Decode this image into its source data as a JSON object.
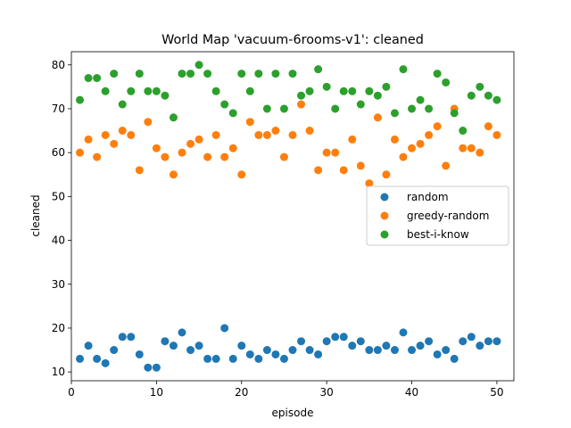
{
  "chart_data": {
    "type": "scatter",
    "title": "World Map 'vacuum-6rooms-v1': cleaned",
    "xlabel": "episode",
    "ylabel": "cleaned",
    "xlim": [
      0,
      52
    ],
    "ylim": [
      8,
      83
    ],
    "xticks": [
      0,
      10,
      20,
      30,
      40,
      50
    ],
    "yticks": [
      10,
      20,
      30,
      40,
      50,
      60,
      70,
      80
    ],
    "grid": false,
    "legend_position": "center-right",
    "x": [
      1,
      2,
      3,
      4,
      5,
      6,
      7,
      8,
      9,
      10,
      11,
      12,
      13,
      14,
      15,
      16,
      17,
      18,
      19,
      20,
      21,
      22,
      23,
      24,
      25,
      26,
      27,
      28,
      29,
      30,
      31,
      32,
      33,
      34,
      35,
      36,
      37,
      38,
      39,
      40,
      41,
      42,
      43,
      44,
      45,
      46,
      47,
      48,
      49,
      50
    ],
    "series": [
      {
        "name": "random",
        "color": "#1f77b4",
        "values": [
          13,
          16,
          13,
          12,
          15,
          18,
          18,
          14,
          11,
          11,
          17,
          16,
          19,
          15,
          16,
          13,
          13,
          20,
          13,
          16,
          14,
          13,
          15,
          14,
          13,
          15,
          17,
          15,
          14,
          17,
          18,
          18,
          16,
          17,
          15,
          15,
          16,
          15,
          19,
          15,
          16,
          17,
          14,
          15,
          13,
          17,
          18,
          16,
          17,
          17
        ]
      },
      {
        "name": "greedy-random",
        "color": "#ff7f0e",
        "values": [
          60,
          63,
          59,
          64,
          62,
          65,
          64,
          56,
          67,
          61,
          59,
          55,
          60,
          62,
          63,
          59,
          64,
          59,
          61,
          55,
          67,
          64,
          64,
          65,
          59,
          64,
          71,
          65,
          56,
          60,
          60,
          56,
          63,
          57,
          53,
          68,
          55,
          63,
          59,
          61,
          62,
          64,
          66,
          57,
          70,
          61,
          61,
          60,
          66,
          64
        ]
      },
      {
        "name": "best-i-know",
        "color": "#2ca02c",
        "values": [
          72,
          77,
          77,
          74,
          78,
          71,
          74,
          78,
          74,
          74,
          73,
          68,
          78,
          78,
          80,
          78,
          74,
          71,
          69,
          78,
          74,
          78,
          70,
          78,
          70,
          78,
          73,
          74,
          79,
          75,
          70,
          74,
          74,
          71,
          74,
          73,
          75,
          69,
          79,
          70,
          72,
          70,
          78,
          76,
          69,
          65,
          73,
          75,
          73,
          72
        ]
      }
    ]
  }
}
